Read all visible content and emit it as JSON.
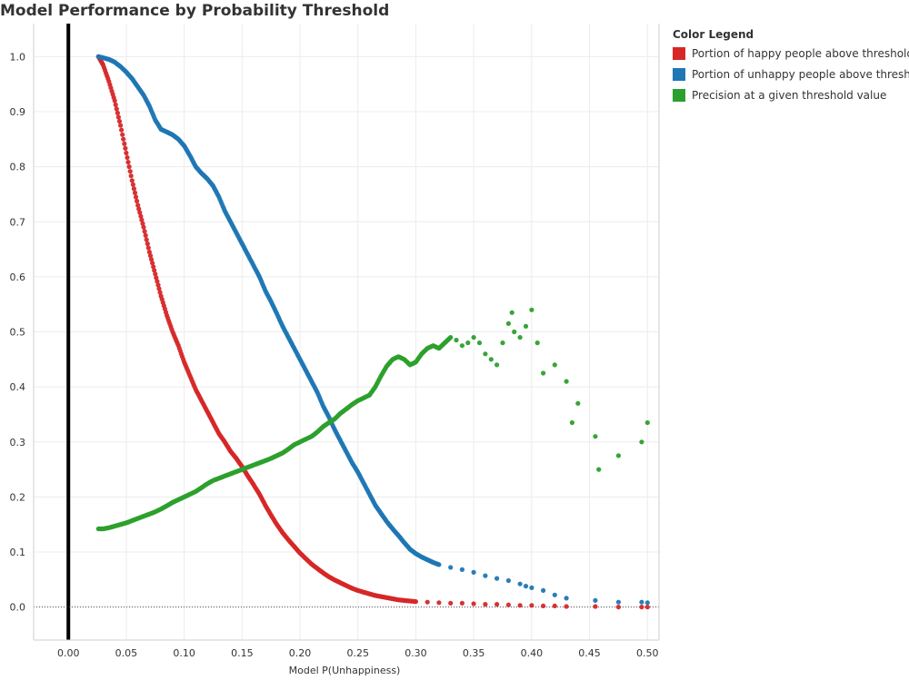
{
  "chart_data": {
    "type": "scatter",
    "title": "Model Performance by Probability Threshold",
    "xlabel": "Model P(Unhappiness)",
    "ylabel": "",
    "xlim": [
      -0.03,
      0.51
    ],
    "ylim": [
      -0.06,
      1.06
    ],
    "x_ticks": [
      0.0,
      0.05,
      0.1,
      0.15,
      0.2,
      0.25,
      0.3,
      0.35,
      0.4,
      0.45,
      0.5
    ],
    "x_tick_labels": [
      "0.00",
      "0.05",
      "0.10",
      "0.15",
      "0.20",
      "0.25",
      "0.30",
      "0.35",
      "0.40",
      "0.45",
      "0.50"
    ],
    "y_ticks": [
      0.0,
      0.1,
      0.2,
      0.3,
      0.4,
      0.5,
      0.6,
      0.7,
      0.8,
      0.9,
      1.0
    ],
    "y_tick_labels": [
      "0.0",
      "0.1",
      "0.2",
      "0.3",
      "0.4",
      "0.5",
      "0.6",
      "0.7",
      "0.8",
      "0.9",
      "1.0"
    ],
    "grid": true,
    "legend_title": "Color Legend",
    "legend_position": "right",
    "series": [
      {
        "name": "Portion of happy people above threshold",
        "color": "#d62728",
        "points": [
          [
            0.026,
            1.0
          ],
          [
            0.03,
            0.985
          ],
          [
            0.035,
            0.955
          ],
          [
            0.04,
            0.92
          ],
          [
            0.045,
            0.875
          ],
          [
            0.05,
            0.825
          ],
          [
            0.055,
            0.775
          ],
          [
            0.06,
            0.73
          ],
          [
            0.065,
            0.69
          ],
          [
            0.07,
            0.645
          ],
          [
            0.075,
            0.605
          ],
          [
            0.08,
            0.565
          ],
          [
            0.085,
            0.53
          ],
          [
            0.09,
            0.5
          ],
          [
            0.095,
            0.475
          ],
          [
            0.1,
            0.445
          ],
          [
            0.105,
            0.42
          ],
          [
            0.11,
            0.395
          ],
          [
            0.115,
            0.375
          ],
          [
            0.12,
            0.355
          ],
          [
            0.125,
            0.335
          ],
          [
            0.13,
            0.315
          ],
          [
            0.135,
            0.3
          ],
          [
            0.14,
            0.283
          ],
          [
            0.145,
            0.27
          ],
          [
            0.15,
            0.255
          ],
          [
            0.155,
            0.238
          ],
          [
            0.16,
            0.222
          ],
          [
            0.165,
            0.205
          ],
          [
            0.17,
            0.185
          ],
          [
            0.175,
            0.167
          ],
          [
            0.18,
            0.15
          ],
          [
            0.185,
            0.135
          ],
          [
            0.19,
            0.122
          ],
          [
            0.195,
            0.11
          ],
          [
            0.2,
            0.098
          ],
          [
            0.205,
            0.088
          ],
          [
            0.21,
            0.078
          ],
          [
            0.215,
            0.07
          ],
          [
            0.22,
            0.062
          ],
          [
            0.225,
            0.055
          ],
          [
            0.23,
            0.049
          ],
          [
            0.235,
            0.044
          ],
          [
            0.24,
            0.039
          ],
          [
            0.245,
            0.034
          ],
          [
            0.25,
            0.03
          ],
          [
            0.255,
            0.027
          ],
          [
            0.26,
            0.024
          ],
          [
            0.265,
            0.021
          ],
          [
            0.27,
            0.019
          ],
          [
            0.275,
            0.017
          ],
          [
            0.28,
            0.015
          ],
          [
            0.285,
            0.013
          ],
          [
            0.29,
            0.012
          ],
          [
            0.295,
            0.011
          ],
          [
            0.3,
            0.01
          ],
          [
            0.31,
            0.009
          ],
          [
            0.32,
            0.008
          ],
          [
            0.33,
            0.007
          ],
          [
            0.34,
            0.007
          ],
          [
            0.35,
            0.006
          ],
          [
            0.36,
            0.005
          ],
          [
            0.37,
            0.005
          ],
          [
            0.38,
            0.004
          ],
          [
            0.39,
            0.003
          ],
          [
            0.4,
            0.003
          ],
          [
            0.41,
            0.002
          ],
          [
            0.42,
            0.002
          ],
          [
            0.43,
            0.001
          ],
          [
            0.455,
            0.001
          ],
          [
            0.475,
            0.0
          ],
          [
            0.495,
            0.0
          ],
          [
            0.5,
            0.0
          ]
        ]
      },
      {
        "name": "Portion of unhappy people above threshold",
        "color": "#1f77b4",
        "points": [
          [
            0.026,
            1.0
          ],
          [
            0.03,
            0.998
          ],
          [
            0.035,
            0.995
          ],
          [
            0.04,
            0.99
          ],
          [
            0.045,
            0.982
          ],
          [
            0.05,
            0.972
          ],
          [
            0.055,
            0.96
          ],
          [
            0.06,
            0.945
          ],
          [
            0.065,
            0.93
          ],
          [
            0.07,
            0.91
          ],
          [
            0.075,
            0.885
          ],
          [
            0.08,
            0.868
          ],
          [
            0.085,
            0.863
          ],
          [
            0.09,
            0.858
          ],
          [
            0.095,
            0.85
          ],
          [
            0.1,
            0.838
          ],
          [
            0.105,
            0.82
          ],
          [
            0.11,
            0.8
          ],
          [
            0.115,
            0.788
          ],
          [
            0.12,
            0.778
          ],
          [
            0.125,
            0.765
          ],
          [
            0.13,
            0.745
          ],
          [
            0.135,
            0.72
          ],
          [
            0.14,
            0.7
          ],
          [
            0.145,
            0.68
          ],
          [
            0.15,
            0.66
          ],
          [
            0.155,
            0.64
          ],
          [
            0.16,
            0.62
          ],
          [
            0.165,
            0.6
          ],
          [
            0.17,
            0.575
          ],
          [
            0.175,
            0.555
          ],
          [
            0.18,
            0.533
          ],
          [
            0.185,
            0.51
          ],
          [
            0.19,
            0.49
          ],
          [
            0.195,
            0.47
          ],
          [
            0.2,
            0.45
          ],
          [
            0.205,
            0.43
          ],
          [
            0.21,
            0.41
          ],
          [
            0.215,
            0.39
          ],
          [
            0.22,
            0.365
          ],
          [
            0.225,
            0.345
          ],
          [
            0.23,
            0.322
          ],
          [
            0.235,
            0.302
          ],
          [
            0.24,
            0.282
          ],
          [
            0.245,
            0.262
          ],
          [
            0.25,
            0.245
          ],
          [
            0.255,
            0.225
          ],
          [
            0.26,
            0.205
          ],
          [
            0.265,
            0.185
          ],
          [
            0.27,
            0.17
          ],
          [
            0.275,
            0.155
          ],
          [
            0.28,
            0.142
          ],
          [
            0.285,
            0.13
          ],
          [
            0.29,
            0.117
          ],
          [
            0.295,
            0.105
          ],
          [
            0.3,
            0.097
          ],
          [
            0.305,
            0.091
          ],
          [
            0.31,
            0.086
          ],
          [
            0.315,
            0.081
          ],
          [
            0.32,
            0.077
          ],
          [
            0.33,
            0.072
          ],
          [
            0.34,
            0.068
          ],
          [
            0.35,
            0.063
          ],
          [
            0.36,
            0.057
          ],
          [
            0.37,
            0.052
          ],
          [
            0.38,
            0.048
          ],
          [
            0.39,
            0.042
          ],
          [
            0.395,
            0.038
          ],
          [
            0.4,
            0.035
          ],
          [
            0.41,
            0.03
          ],
          [
            0.42,
            0.022
          ],
          [
            0.43,
            0.016
          ],
          [
            0.455,
            0.012
          ],
          [
            0.475,
            0.009
          ],
          [
            0.495,
            0.009
          ],
          [
            0.5,
            0.008
          ]
        ]
      },
      {
        "name": "Precision at a given threshold value",
        "color": "#2ca02c",
        "points": [
          [
            0.026,
            0.142
          ],
          [
            0.03,
            0.142
          ],
          [
            0.035,
            0.144
          ],
          [
            0.04,
            0.147
          ],
          [
            0.045,
            0.15
          ],
          [
            0.05,
            0.153
          ],
          [
            0.055,
            0.157
          ],
          [
            0.06,
            0.161
          ],
          [
            0.065,
            0.165
          ],
          [
            0.07,
            0.169
          ],
          [
            0.075,
            0.173
          ],
          [
            0.08,
            0.178
          ],
          [
            0.085,
            0.184
          ],
          [
            0.09,
            0.19
          ],
          [
            0.095,
            0.195
          ],
          [
            0.1,
            0.2
          ],
          [
            0.105,
            0.205
          ],
          [
            0.11,
            0.21
          ],
          [
            0.115,
            0.217
          ],
          [
            0.12,
            0.224
          ],
          [
            0.125,
            0.23
          ],
          [
            0.13,
            0.234
          ],
          [
            0.135,
            0.238
          ],
          [
            0.14,
            0.242
          ],
          [
            0.145,
            0.246
          ],
          [
            0.15,
            0.25
          ],
          [
            0.155,
            0.254
          ],
          [
            0.16,
            0.258
          ],
          [
            0.165,
            0.262
          ],
          [
            0.17,
            0.266
          ],
          [
            0.175,
            0.27
          ],
          [
            0.18,
            0.275
          ],
          [
            0.185,
            0.28
          ],
          [
            0.19,
            0.287
          ],
          [
            0.195,
            0.295
          ],
          [
            0.2,
            0.3
          ],
          [
            0.205,
            0.305
          ],
          [
            0.21,
            0.31
          ],
          [
            0.215,
            0.318
          ],
          [
            0.22,
            0.328
          ],
          [
            0.225,
            0.335
          ],
          [
            0.23,
            0.342
          ],
          [
            0.235,
            0.352
          ],
          [
            0.24,
            0.36
          ],
          [
            0.245,
            0.368
          ],
          [
            0.25,
            0.375
          ],
          [
            0.255,
            0.38
          ],
          [
            0.26,
            0.385
          ],
          [
            0.265,
            0.4
          ],
          [
            0.27,
            0.42
          ],
          [
            0.275,
            0.438
          ],
          [
            0.28,
            0.45
          ],
          [
            0.285,
            0.455
          ],
          [
            0.29,
            0.45
          ],
          [
            0.295,
            0.44
          ],
          [
            0.3,
            0.445
          ],
          [
            0.305,
            0.46
          ],
          [
            0.31,
            0.47
          ],
          [
            0.315,
            0.475
          ],
          [
            0.32,
            0.47
          ],
          [
            0.325,
            0.48
          ],
          [
            0.33,
            0.49
          ],
          [
            0.335,
            0.485
          ],
          [
            0.34,
            0.475
          ],
          [
            0.345,
            0.48
          ],
          [
            0.35,
            0.49
          ],
          [
            0.355,
            0.48
          ],
          [
            0.36,
            0.46
          ],
          [
            0.365,
            0.45
          ],
          [
            0.37,
            0.44
          ],
          [
            0.375,
            0.48
          ],
          [
            0.38,
            0.515
          ],
          [
            0.383,
            0.535
          ],
          [
            0.385,
            0.5
          ],
          [
            0.39,
            0.49
          ],
          [
            0.395,
            0.51
          ],
          [
            0.4,
            0.54
          ],
          [
            0.405,
            0.48
          ],
          [
            0.41,
            0.425
          ],
          [
            0.42,
            0.44
          ],
          [
            0.43,
            0.41
          ],
          [
            0.435,
            0.335
          ],
          [
            0.44,
            0.37
          ],
          [
            0.455,
            0.31
          ],
          [
            0.458,
            0.25
          ],
          [
            0.475,
            0.275
          ],
          [
            0.495,
            0.3
          ],
          [
            0.5,
            0.335
          ]
        ]
      }
    ],
    "reference_lines": [
      {
        "orientation": "vertical",
        "value": 0.0,
        "style": "solid",
        "color": "#000000"
      },
      {
        "orientation": "horizontal",
        "value": 0.0,
        "style": "dotted",
        "color": "#555555"
      }
    ]
  }
}
